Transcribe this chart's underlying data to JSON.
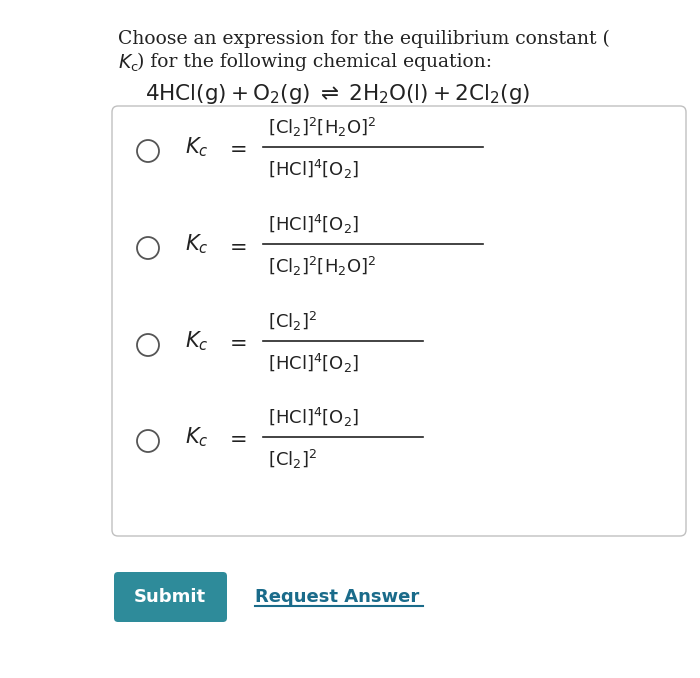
{
  "background_color": "#ffffff",
  "text_color": "#222222",
  "box_edge_color": "#c0c0c0",
  "submit_color": "#2e8b9a",
  "submit_text": "Submit",
  "request_text": "Request Answer",
  "request_color": "#1a6b8a",
  "title_line1": "Choose an expression for the equilibrium constant (",
  "title_line2_plain": ") for the following chemical equation:",
  "options": [
    {
      "numerator": "$[\\mathrm{Cl_2}]^2[\\mathrm{H_2O}]^2$",
      "denominator": "$[\\mathrm{HCl}]^4[\\mathrm{O_2}]$"
    },
    {
      "numerator": "$[\\mathrm{HCl}]^4[\\mathrm{O_2}]$",
      "denominator": "$[\\mathrm{Cl_2}]^2[\\mathrm{H_2O}]^2$"
    },
    {
      "numerator": "$[\\mathrm{Cl_2}]^2$",
      "denominator": "$[\\mathrm{HCl}]^4[\\mathrm{O_2}]$"
    },
    {
      "numerator": "$[\\mathrm{HCl}]^4[\\mathrm{O_2}]$",
      "denominator": "$[\\mathrm{Cl_2}]^2$"
    }
  ]
}
